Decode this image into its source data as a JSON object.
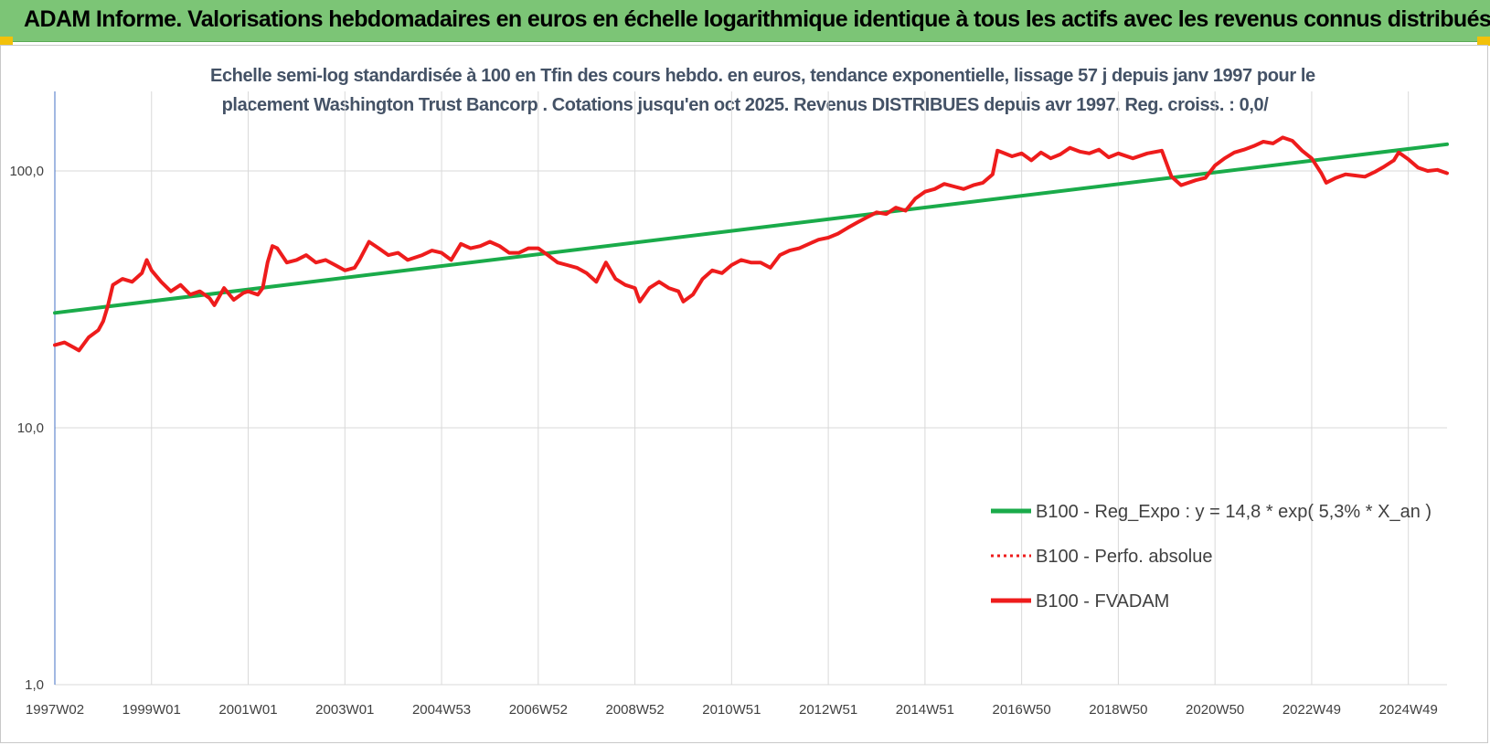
{
  "banner": {
    "title": "ADAM Informe. Valorisations hebdomadaires en euros en échelle logarithmique identique à tous les actifs avec les revenus connus distribués",
    "background": "#7cc576"
  },
  "chart_data": {
    "type": "line",
    "title_line1": "Echelle semi-log standardisée à 100 en Tfin des cours hebdo. en euros, tendance exponentielle, lissage 57 j depuis janv 1997 pour le",
    "title_line2": "placement Washington Trust Bancorp . Cotations jusqu'en oct 2025. Revenus DISTRIBUES depuis avr 1997. Reg. croiss. : 0,0/",
    "y_scale": "log",
    "ylim": [
      1,
      200
    ],
    "y_ticks": [
      {
        "value": 1,
        "label": "1,0"
      },
      {
        "value": 10,
        "label": "10,0"
      },
      {
        "value": 100,
        "label": "100,0"
      }
    ],
    "x_range": [
      1997.0,
      2025.8
    ],
    "x_ticks": [
      {
        "year": 1997.0,
        "label": "1997W02"
      },
      {
        "year": 1999.0,
        "label": "1999W01"
      },
      {
        "year": 2001.0,
        "label": "2001W01"
      },
      {
        "year": 2003.0,
        "label": "2003W01"
      },
      {
        "year": 2005.0,
        "label": "2004W53"
      },
      {
        "year": 2007.0,
        "label": "2006W52"
      },
      {
        "year": 2009.0,
        "label": "2008W52"
      },
      {
        "year": 2011.0,
        "label": "2010W51"
      },
      {
        "year": 2013.0,
        "label": "2012W51"
      },
      {
        "year": 2015.0,
        "label": "2014W51"
      },
      {
        "year": 2017.0,
        "label": "2016W50"
      },
      {
        "year": 2019.0,
        "label": "2018W50"
      },
      {
        "year": 2021.0,
        "label": "2020W50"
      },
      {
        "year": 2023.0,
        "label": "2022W49"
      },
      {
        "year": 2025.0,
        "label": "2024W49"
      }
    ],
    "grid": true,
    "legend_position": "right",
    "series": [
      {
        "name": "B100 - Reg_Expo : y = 14,8 * exp( 5,3% *  X_an )",
        "color": "#1aab4a",
        "style": "solid",
        "points": [
          [
            1997.0,
            28.0
          ],
          [
            2025.8,
            127.0
          ]
        ]
      },
      {
        "name": "B100 - Perfo. absolue",
        "color": "#ee1c1c",
        "style": "dotted",
        "points": []
      },
      {
        "name": "B100 - FVADAM",
        "color": "#ee1c1c",
        "style": "solid",
        "points": [
          [
            1997.0,
            21
          ],
          [
            1997.2,
            21.5
          ],
          [
            1997.4,
            20.5
          ],
          [
            1997.5,
            20
          ],
          [
            1997.7,
            22.5
          ],
          [
            1997.9,
            24
          ],
          [
            1998.0,
            26
          ],
          [
            1998.1,
            30
          ],
          [
            1998.2,
            36
          ],
          [
            1998.4,
            38
          ],
          [
            1998.6,
            37
          ],
          [
            1998.8,
            40
          ],
          [
            1998.9,
            45
          ],
          [
            1999.0,
            41
          ],
          [
            1999.2,
            37
          ],
          [
            1999.4,
            34
          ],
          [
            1999.6,
            36
          ],
          [
            1999.8,
            33
          ],
          [
            2000.0,
            34
          ],
          [
            2000.2,
            32
          ],
          [
            2000.3,
            30
          ],
          [
            2000.5,
            35
          ],
          [
            2000.7,
            31.5
          ],
          [
            2000.9,
            33.5
          ],
          [
            2001.0,
            34
          ],
          [
            2001.2,
            33
          ],
          [
            2001.3,
            35
          ],
          [
            2001.4,
            44
          ],
          [
            2001.5,
            51
          ],
          [
            2001.6,
            50
          ],
          [
            2001.8,
            44
          ],
          [
            2002.0,
            45
          ],
          [
            2002.2,
            47
          ],
          [
            2002.4,
            44
          ],
          [
            2002.6,
            45
          ],
          [
            2002.8,
            43
          ],
          [
            2003.0,
            41
          ],
          [
            2003.2,
            42
          ],
          [
            2003.3,
            45
          ],
          [
            2003.5,
            53
          ],
          [
            2003.7,
            50
          ],
          [
            2003.9,
            47
          ],
          [
            2004.1,
            48
          ],
          [
            2004.3,
            45
          ],
          [
            2004.6,
            47
          ],
          [
            2004.8,
            49
          ],
          [
            2005.0,
            48
          ],
          [
            2005.2,
            45
          ],
          [
            2005.4,
            52
          ],
          [
            2005.6,
            50
          ],
          [
            2005.8,
            51
          ],
          [
            2006.0,
            53
          ],
          [
            2006.2,
            51
          ],
          [
            2006.4,
            48
          ],
          [
            2006.6,
            48
          ],
          [
            2006.8,
            50
          ],
          [
            2007.0,
            50
          ],
          [
            2007.2,
            47
          ],
          [
            2007.4,
            44
          ],
          [
            2007.6,
            43
          ],
          [
            2007.8,
            42
          ],
          [
            2008.0,
            40
          ],
          [
            2008.2,
            37
          ],
          [
            2008.4,
            44
          ],
          [
            2008.6,
            38
          ],
          [
            2008.8,
            36
          ],
          [
            2009.0,
            35
          ],
          [
            2009.1,
            31
          ],
          [
            2009.3,
            35
          ],
          [
            2009.5,
            37
          ],
          [
            2009.7,
            35
          ],
          [
            2009.9,
            34
          ],
          [
            2010.0,
            31
          ],
          [
            2010.2,
            33
          ],
          [
            2010.4,
            38
          ],
          [
            2010.6,
            41
          ],
          [
            2010.8,
            40
          ],
          [
            2011.0,
            43
          ],
          [
            2011.2,
            45
          ],
          [
            2011.4,
            44
          ],
          [
            2011.6,
            44
          ],
          [
            2011.8,
            42
          ],
          [
            2012.0,
            47
          ],
          [
            2012.2,
            49
          ],
          [
            2012.4,
            50
          ],
          [
            2012.6,
            52
          ],
          [
            2012.8,
            54
          ],
          [
            2013.0,
            55
          ],
          [
            2013.2,
            57
          ],
          [
            2013.4,
            60
          ],
          [
            2013.6,
            63
          ],
          [
            2013.8,
            66
          ],
          [
            2014.0,
            69
          ],
          [
            2014.2,
            68
          ],
          [
            2014.4,
            72
          ],
          [
            2014.6,
            70
          ],
          [
            2014.8,
            78
          ],
          [
            2015.0,
            83
          ],
          [
            2015.2,
            85
          ],
          [
            2015.4,
            89
          ],
          [
            2015.6,
            87
          ],
          [
            2015.8,
            85
          ],
          [
            2016.0,
            88
          ],
          [
            2016.2,
            90
          ],
          [
            2016.4,
            97
          ],
          [
            2016.5,
            120
          ],
          [
            2016.6,
            118
          ],
          [
            2016.8,
            114
          ],
          [
            2017.0,
            117
          ],
          [
            2017.2,
            110
          ],
          [
            2017.4,
            118
          ],
          [
            2017.6,
            112
          ],
          [
            2017.8,
            116
          ],
          [
            2018.0,
            123
          ],
          [
            2018.2,
            119
          ],
          [
            2018.4,
            117
          ],
          [
            2018.6,
            121
          ],
          [
            2018.8,
            113
          ],
          [
            2019.0,
            117
          ],
          [
            2019.3,
            112
          ],
          [
            2019.6,
            117
          ],
          [
            2019.9,
            120
          ],
          [
            2020.1,
            95
          ],
          [
            2020.3,
            88
          ],
          [
            2020.6,
            92
          ],
          [
            2020.8,
            94
          ],
          [
            2021.0,
            105
          ],
          [
            2021.2,
            112
          ],
          [
            2021.4,
            118
          ],
          [
            2021.6,
            121
          ],
          [
            2021.8,
            125
          ],
          [
            2022.0,
            130
          ],
          [
            2022.2,
            128
          ],
          [
            2022.4,
            135
          ],
          [
            2022.6,
            131
          ],
          [
            2022.8,
            120
          ],
          [
            2023.0,
            112
          ],
          [
            2023.2,
            98
          ],
          [
            2023.3,
            90
          ],
          [
            2023.5,
            94
          ],
          [
            2023.7,
            97
          ],
          [
            2023.9,
            96
          ],
          [
            2024.1,
            95
          ],
          [
            2024.3,
            99
          ],
          [
            2024.5,
            104
          ],
          [
            2024.7,
            110
          ],
          [
            2024.8,
            118
          ],
          [
            2025.0,
            111
          ],
          [
            2025.2,
            103
          ],
          [
            2025.4,
            100
          ],
          [
            2025.6,
            101
          ],
          [
            2025.8,
            98
          ]
        ]
      }
    ]
  }
}
